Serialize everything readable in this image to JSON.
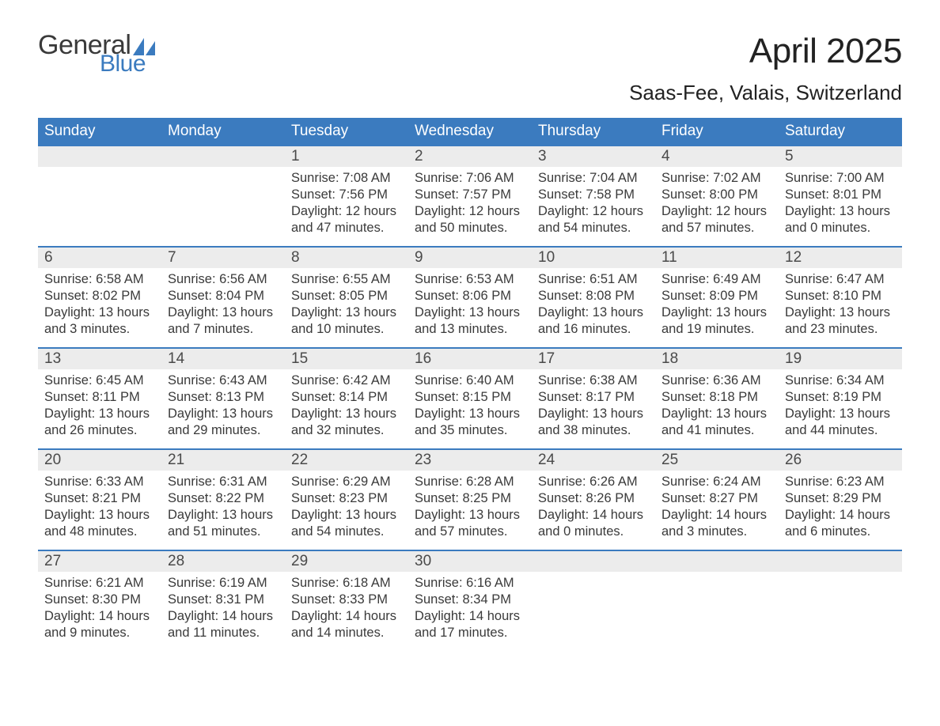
{
  "logo": {
    "word1": "General",
    "word2": "Blue",
    "word1_color": "#3a3a3a",
    "word2_color": "#3b7bbf"
  },
  "title": "April 2025",
  "location": "Saas-Fee, Valais, Switzerland",
  "colors": {
    "header_bg": "#3b7bbf",
    "header_text": "#ffffff",
    "daynum_bg": "#ececec",
    "week_border": "#3b7bbf",
    "body_text": "#3a3a3a",
    "page_bg": "#ffffff"
  },
  "daysOfWeek": [
    "Sunday",
    "Monday",
    "Tuesday",
    "Wednesday",
    "Thursday",
    "Friday",
    "Saturday"
  ],
  "weeks": [
    [
      null,
      null,
      {
        "n": "1",
        "sunrise": "7:08 AM",
        "sunset": "7:56 PM",
        "daylight": "12 hours and 47 minutes."
      },
      {
        "n": "2",
        "sunrise": "7:06 AM",
        "sunset": "7:57 PM",
        "daylight": "12 hours and 50 minutes."
      },
      {
        "n": "3",
        "sunrise": "7:04 AM",
        "sunset": "7:58 PM",
        "daylight": "12 hours and 54 minutes."
      },
      {
        "n": "4",
        "sunrise": "7:02 AM",
        "sunset": "8:00 PM",
        "daylight": "12 hours and 57 minutes."
      },
      {
        "n": "5",
        "sunrise": "7:00 AM",
        "sunset": "8:01 PM",
        "daylight": "13 hours and 0 minutes."
      }
    ],
    [
      {
        "n": "6",
        "sunrise": "6:58 AM",
        "sunset": "8:02 PM",
        "daylight": "13 hours and 3 minutes."
      },
      {
        "n": "7",
        "sunrise": "6:56 AM",
        "sunset": "8:04 PM",
        "daylight": "13 hours and 7 minutes."
      },
      {
        "n": "8",
        "sunrise": "6:55 AM",
        "sunset": "8:05 PM",
        "daylight": "13 hours and 10 minutes."
      },
      {
        "n": "9",
        "sunrise": "6:53 AM",
        "sunset": "8:06 PM",
        "daylight": "13 hours and 13 minutes."
      },
      {
        "n": "10",
        "sunrise": "6:51 AM",
        "sunset": "8:08 PM",
        "daylight": "13 hours and 16 minutes."
      },
      {
        "n": "11",
        "sunrise": "6:49 AM",
        "sunset": "8:09 PM",
        "daylight": "13 hours and 19 minutes."
      },
      {
        "n": "12",
        "sunrise": "6:47 AM",
        "sunset": "8:10 PM",
        "daylight": "13 hours and 23 minutes."
      }
    ],
    [
      {
        "n": "13",
        "sunrise": "6:45 AM",
        "sunset": "8:11 PM",
        "daylight": "13 hours and 26 minutes."
      },
      {
        "n": "14",
        "sunrise": "6:43 AM",
        "sunset": "8:13 PM",
        "daylight": "13 hours and 29 minutes."
      },
      {
        "n": "15",
        "sunrise": "6:42 AM",
        "sunset": "8:14 PM",
        "daylight": "13 hours and 32 minutes."
      },
      {
        "n": "16",
        "sunrise": "6:40 AM",
        "sunset": "8:15 PM",
        "daylight": "13 hours and 35 minutes."
      },
      {
        "n": "17",
        "sunrise": "6:38 AM",
        "sunset": "8:17 PM",
        "daylight": "13 hours and 38 minutes."
      },
      {
        "n": "18",
        "sunrise": "6:36 AM",
        "sunset": "8:18 PM",
        "daylight": "13 hours and 41 minutes."
      },
      {
        "n": "19",
        "sunrise": "6:34 AM",
        "sunset": "8:19 PM",
        "daylight": "13 hours and 44 minutes."
      }
    ],
    [
      {
        "n": "20",
        "sunrise": "6:33 AM",
        "sunset": "8:21 PM",
        "daylight": "13 hours and 48 minutes."
      },
      {
        "n": "21",
        "sunrise": "6:31 AM",
        "sunset": "8:22 PM",
        "daylight": "13 hours and 51 minutes."
      },
      {
        "n": "22",
        "sunrise": "6:29 AM",
        "sunset": "8:23 PM",
        "daylight": "13 hours and 54 minutes."
      },
      {
        "n": "23",
        "sunrise": "6:28 AM",
        "sunset": "8:25 PM",
        "daylight": "13 hours and 57 minutes."
      },
      {
        "n": "24",
        "sunrise": "6:26 AM",
        "sunset": "8:26 PM",
        "daylight": "14 hours and 0 minutes."
      },
      {
        "n": "25",
        "sunrise": "6:24 AM",
        "sunset": "8:27 PM",
        "daylight": "14 hours and 3 minutes."
      },
      {
        "n": "26",
        "sunrise": "6:23 AM",
        "sunset": "8:29 PM",
        "daylight": "14 hours and 6 minutes."
      }
    ],
    [
      {
        "n": "27",
        "sunrise": "6:21 AM",
        "sunset": "8:30 PM",
        "daylight": "14 hours and 9 minutes."
      },
      {
        "n": "28",
        "sunrise": "6:19 AM",
        "sunset": "8:31 PM",
        "daylight": "14 hours and 11 minutes."
      },
      {
        "n": "29",
        "sunrise": "6:18 AM",
        "sunset": "8:33 PM",
        "daylight": "14 hours and 14 minutes."
      },
      {
        "n": "30",
        "sunrise": "6:16 AM",
        "sunset": "8:34 PM",
        "daylight": "14 hours and 17 minutes."
      },
      null,
      null,
      null
    ]
  ],
  "labels": {
    "sunrise": "Sunrise: ",
    "sunset": "Sunset: ",
    "daylight": "Daylight: "
  }
}
